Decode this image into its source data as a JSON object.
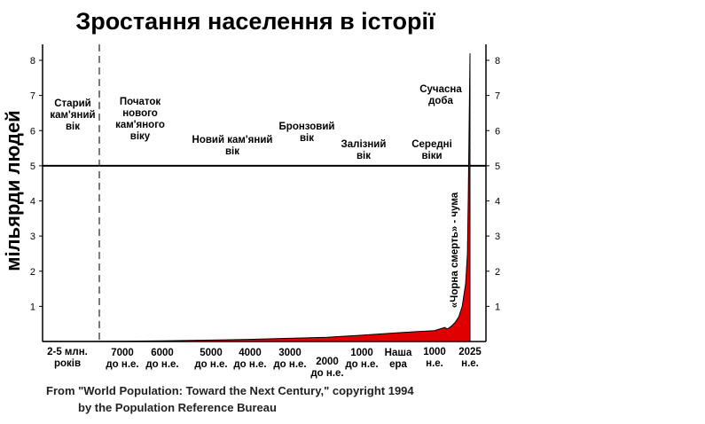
{
  "chart_data": {
    "type": "area",
    "title": "Зростання населення в історії",
    "ylabel": "мільярди людей",
    "ylim": [
      0,
      8.5
    ],
    "yticks": [
      1,
      2,
      3,
      4,
      5,
      6,
      7,
      8
    ],
    "grid": false,
    "reference_line": 5,
    "fill_color": "#e00000",
    "x_ticks": [
      {
        "id": "t0",
        "lines": [
          "2-5 млн.",
          "років"
        ]
      },
      {
        "id": "t1",
        "lines": [
          "7000",
          "до н.е."
        ]
      },
      {
        "id": "t2",
        "lines": [
          "6000",
          "до н.е."
        ]
      },
      {
        "id": "t3",
        "lines": [
          "5000",
          "до н.е."
        ]
      },
      {
        "id": "t4",
        "lines": [
          "4000",
          "до н.е."
        ]
      },
      {
        "id": "t5",
        "lines": [
          "3000",
          "до н.е."
        ]
      },
      {
        "id": "t6",
        "lines": [
          "2000",
          "до н.е."
        ]
      },
      {
        "id": "t7",
        "lines": [
          "1000",
          "до н.е."
        ]
      },
      {
        "id": "t8",
        "lines": [
          "Наша",
          "ера"
        ]
      },
      {
        "id": "t9",
        "lines": [
          "1000",
          "н.е."
        ]
      },
      {
        "id": "t10",
        "lines": [
          "2025",
          "н.е."
        ]
      }
    ],
    "eras": [
      {
        "id": "e0",
        "lines": [
          "Старий",
          "кам'яний",
          "вік"
        ]
      },
      {
        "id": "e1",
        "lines": [
          "Початок",
          "нового",
          "кам'яного",
          "віку"
        ]
      },
      {
        "id": "e2",
        "lines": [
          "Новий кам'яний",
          "вік"
        ]
      },
      {
        "id": "e3",
        "lines": [
          "Бронзовий",
          "вік"
        ]
      },
      {
        "id": "e4",
        "lines": [
          "Залізний",
          "вік"
        ]
      },
      {
        "id": "e5",
        "lines": [
          "Середні",
          "віки"
        ]
      },
      {
        "id": "e6",
        "lines": [
          "Сучасна",
          "доба"
        ]
      }
    ],
    "annotations": [
      {
        "id": "plague",
        "text": "«Чорна смерть» - чума"
      }
    ],
    "x": [
      -8000,
      -7000,
      -6000,
      -5000,
      -4000,
      -3000,
      -2000,
      -1000,
      0,
      500,
      1000,
      1300,
      1350,
      1400,
      1500,
      1600,
      1700,
      1800,
      1900,
      1950,
      1975,
      2000,
      2025
    ],
    "values": [
      0.005,
      0.01,
      0.02,
      0.04,
      0.06,
      0.09,
      0.12,
      0.18,
      0.25,
      0.28,
      0.31,
      0.4,
      0.36,
      0.37,
      0.45,
      0.55,
      0.7,
      1.0,
      1.65,
      2.5,
      4.0,
      6.1,
      8.2
    ]
  },
  "source": {
    "line1": "From \"World Population: Toward the Next Century,\" copyright 1994",
    "line2": "by the Population Reference Bureau"
  }
}
